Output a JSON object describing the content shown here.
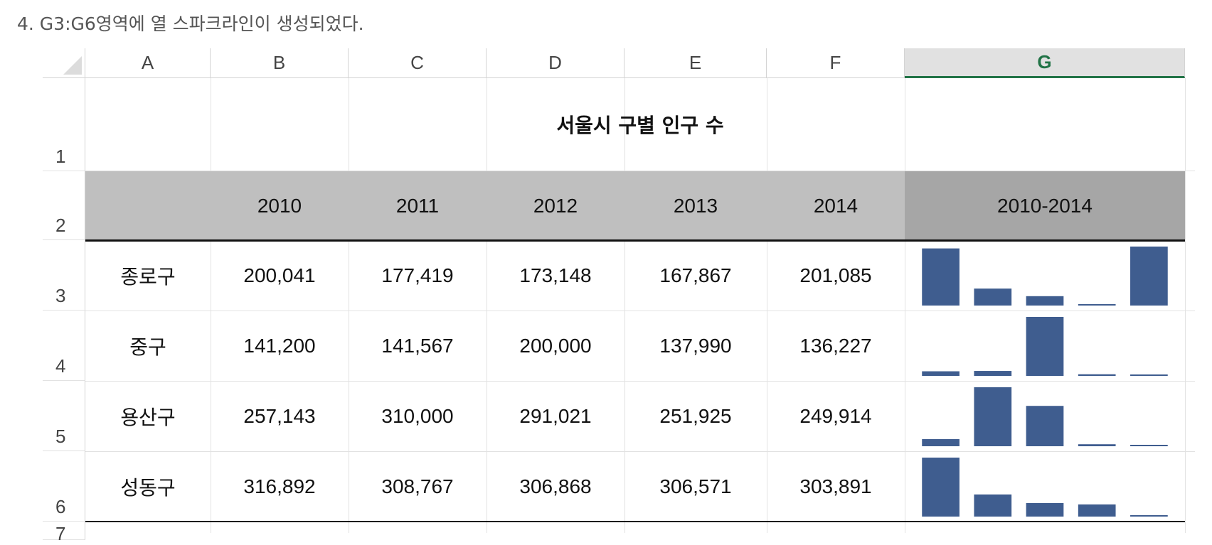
{
  "caption": "4. G3:G6영역에 열 스파크라인이 생성되었다.",
  "columns": [
    "A",
    "B",
    "C",
    "D",
    "E",
    "F",
    "G"
  ],
  "selected_column": "G",
  "rows": [
    "1",
    "2",
    "3",
    "4",
    "5",
    "6",
    "7"
  ],
  "title": "서울시 구별 인구 수",
  "header": {
    "years": [
      "2010",
      "2011",
      "2012",
      "2013",
      "2014"
    ],
    "sparkline_range": "2010-2014"
  },
  "districts": [
    {
      "name": "종로구",
      "values": [
        "200,041",
        "177,419",
        "173,148",
        "167,867",
        "201,085"
      ]
    },
    {
      "name": "중구",
      "values": [
        "141,200",
        "141,567",
        "200,000",
        "137,990",
        "136,227"
      ]
    },
    {
      "name": "용산구",
      "values": [
        "257,143",
        "310,000",
        "291,021",
        "251,925",
        "249,914"
      ]
    },
    {
      "name": "성동구",
      "values": [
        "316,892",
        "308,767",
        "306,868",
        "306,571",
        "303,891"
      ]
    }
  ],
  "chart_data": {
    "type": "bar",
    "categories": [
      "2010",
      "2011",
      "2012",
      "2013",
      "2014"
    ],
    "series": [
      {
        "name": "종로구",
        "values": [
          200041,
          177419,
          173148,
          167867,
          201085
        ]
      },
      {
        "name": "중구",
        "values": [
          141200,
          141567,
          200000,
          137990,
          136227
        ]
      },
      {
        "name": "용산구",
        "values": [
          257143,
          310000,
          291021,
          251925,
          249914
        ]
      },
      {
        "name": "성동구",
        "values": [
          316892,
          308767,
          306868,
          306571,
          303891
        ]
      }
    ],
    "bar_color": "#3f5d8f",
    "axis": "per-row min-max sparkline"
  }
}
